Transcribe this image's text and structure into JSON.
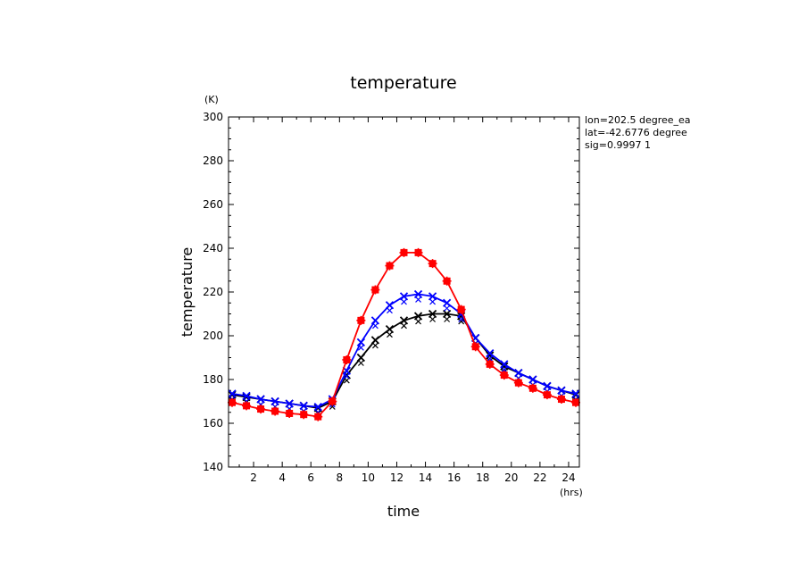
{
  "chart_data": {
    "type": "line",
    "title": "temperature",
    "xlabel": "time",
    "ylabel": "temperature",
    "x_unit": "(hrs)",
    "y_unit": "(K)",
    "xlim": [
      0.25,
      24.75
    ],
    "ylim": [
      140,
      300
    ],
    "x_ticks": [
      2,
      4,
      6,
      8,
      10,
      12,
      14,
      16,
      18,
      20,
      22,
      24
    ],
    "y_ticks": [
      140,
      160,
      180,
      200,
      220,
      240,
      260,
      280,
      300
    ],
    "grid": false,
    "info_text": [
      "lon=202.5 degree_ea",
      "lat=-42.6776 degree",
      "sig=0.9997 1"
    ],
    "x": [
      0.5,
      1.5,
      2.5,
      3.5,
      4.5,
      5.5,
      6.5,
      7.5,
      8.5,
      9.5,
      10.5,
      11.5,
      12.5,
      13.5,
      14.5,
      15.5,
      16.5,
      17.5,
      18.5,
      19.5,
      20.5,
      21.5,
      22.5,
      23.5,
      24.5
    ],
    "series": [
      {
        "name": "black",
        "color": "#000000",
        "marker": "x",
        "values": [
          173,
          172,
          171,
          170,
          169,
          168,
          167,
          170,
          182,
          190,
          198,
          203,
          207,
          209,
          210,
          210,
          209,
          199,
          191,
          186,
          183,
          180,
          177,
          175,
          173
        ]
      },
      {
        "name": "blue",
        "color": "#0000ff",
        "marker": "x",
        "values": [
          173.5,
          172.5,
          171,
          170,
          169,
          168,
          167.5,
          171,
          184,
          197,
          207,
          214,
          218,
          219,
          218,
          215,
          210,
          199,
          192,
          187,
          183,
          180,
          177,
          175,
          173.5
        ]
      },
      {
        "name": "red",
        "color": "#ff0000",
        "marker": "square-plus",
        "values": [
          169.5,
          168,
          166.5,
          165.5,
          164.5,
          164,
          163,
          170,
          189,
          207,
          221,
          232,
          238,
          238,
          233,
          225,
          212,
          195,
          187,
          182,
          178.5,
          176,
          173,
          171,
          169.5
        ]
      }
    ]
  }
}
